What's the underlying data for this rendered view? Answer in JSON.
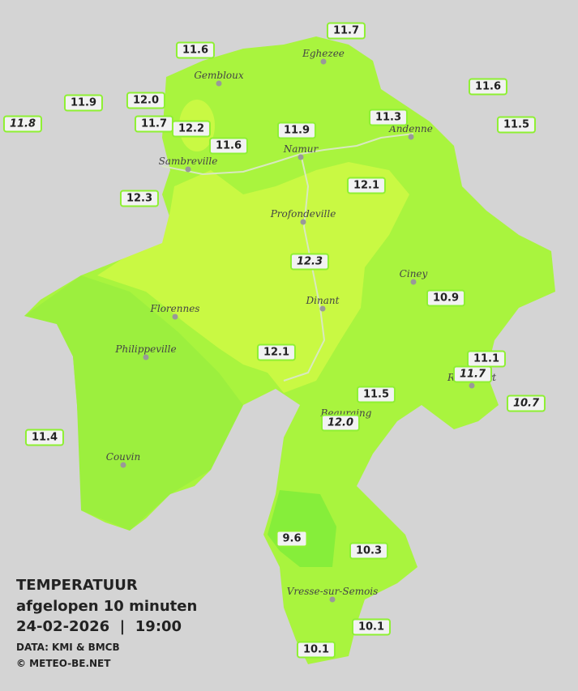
{
  "legend": {
    "title": "TEMPERATUUR",
    "subtitle": "afgelopen 10 minuten",
    "datetime": "24-02-2026  |  19:00",
    "source": "DATA: KMI & BMCB",
    "copyright": "© METEO-BE.NET"
  },
  "cities": [
    "Eghezee",
    "Gembloux",
    "Andenne",
    "Namur",
    "Sambreville",
    "Profondeville",
    "Ciney",
    "Dinant",
    "Florennes",
    "Philippeville",
    "Rochefort",
    "Beauraing",
    "Couvin",
    "Vresse-sur-Semois"
  ],
  "stations": [
    {
      "label": "11.7"
    },
    {
      "label": "11.6"
    },
    {
      "label": "11.6"
    },
    {
      "label": "11.9"
    },
    {
      "label": "12.0"
    },
    {
      "label": "11.8",
      "italic": true
    },
    {
      "label": "11.7"
    },
    {
      "label": "12.2"
    },
    {
      "label": "11.3"
    },
    {
      "label": "11.5"
    },
    {
      "label": "11.9"
    },
    {
      "label": "11.6"
    },
    {
      "label": "12.1"
    },
    {
      "label": "12.3"
    },
    {
      "label": "12.3",
      "italic": true
    },
    {
      "label": "10.9"
    },
    {
      "label": "12.1"
    },
    {
      "label": "11.1"
    },
    {
      "label": "11.7",
      "italic": true
    },
    {
      "label": "10.7",
      "italic": true
    },
    {
      "label": "11.5"
    },
    {
      "label": "12.0",
      "italic": true
    },
    {
      "label": "11.4"
    },
    {
      "label": "9.6"
    },
    {
      "label": "10.3"
    },
    {
      "label": "10.1"
    },
    {
      "label": "10.1"
    }
  ]
}
